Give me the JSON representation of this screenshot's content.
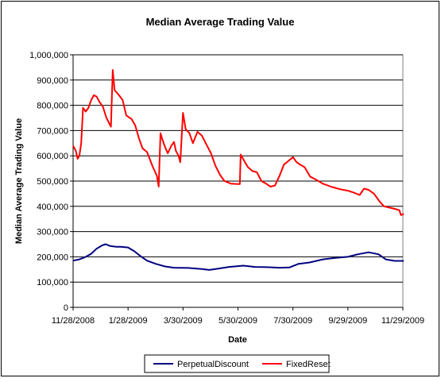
{
  "chart_data": {
    "type": "line",
    "title": "Median Average Trading Value",
    "xlabel": "Date",
    "ylabel": "Median Average Trading Value",
    "ylim": [
      0,
      1000000
    ],
    "y_ticks": [
      0,
      100000,
      200000,
      300000,
      400000,
      500000,
      600000,
      700000,
      800000,
      900000,
      1000000
    ],
    "y_tick_labels": [
      "0",
      "100,000",
      "200,000",
      "300,000",
      "400,000",
      "500,000",
      "600,000",
      "700,000",
      "800,000",
      "900,000",
      "1,000,000"
    ],
    "x_ticks": [
      "2008-11-28",
      "2009-01-28",
      "2009-03-30",
      "2009-05-30",
      "2009-07-30",
      "2009-09-29",
      "2009-11-29"
    ],
    "x_tick_labels": [
      "11/28/2008",
      "1/28/2009",
      "3/30/2009",
      "5/30/2009",
      "7/30/2009",
      "9/29/2009",
      "11/29/2009"
    ],
    "grid": "horizontal",
    "legend_position": "bottom",
    "series": [
      {
        "name": "PerpetualDiscount",
        "color": "#000080",
        "points": [
          [
            "2008-11-28",
            185000
          ],
          [
            "2008-12-05",
            190000
          ],
          [
            "2008-12-12",
            200000
          ],
          [
            "2008-12-18",
            212000
          ],
          [
            "2008-12-24",
            232000
          ],
          [
            "2008-12-30",
            245000
          ],
          [
            "2009-01-03",
            250000
          ],
          [
            "2009-01-08",
            243000
          ],
          [
            "2009-01-15",
            240000
          ],
          [
            "2009-01-20",
            240000
          ],
          [
            "2009-01-28",
            237000
          ],
          [
            "2009-02-04",
            222000
          ],
          [
            "2009-02-10",
            205000
          ],
          [
            "2009-02-18",
            185000
          ],
          [
            "2009-02-28",
            172000
          ],
          [
            "2009-03-10",
            162000
          ],
          [
            "2009-03-20",
            157000
          ],
          [
            "2009-04-05",
            156000
          ],
          [
            "2009-04-20",
            152000
          ],
          [
            "2009-04-28",
            148000
          ],
          [
            "2009-05-08",
            153000
          ],
          [
            "2009-05-20",
            160000
          ],
          [
            "2009-06-05",
            165000
          ],
          [
            "2009-06-18",
            160000
          ],
          [
            "2009-07-01",
            159000
          ],
          [
            "2009-07-15",
            157000
          ],
          [
            "2009-07-26",
            158000
          ],
          [
            "2009-08-05",
            172000
          ],
          [
            "2009-08-18",
            178000
          ],
          [
            "2009-09-01",
            190000
          ],
          [
            "2009-09-15",
            196000
          ],
          [
            "2009-09-29",
            200000
          ],
          [
            "2009-10-10",
            210000
          ],
          [
            "2009-10-22",
            218000
          ],
          [
            "2009-11-02",
            210000
          ],
          [
            "2009-11-10",
            190000
          ],
          [
            "2009-11-20",
            184000
          ],
          [
            "2009-11-30",
            184000
          ]
        ]
      },
      {
        "name": "FixedReset",
        "color": "#ff0000",
        "points": [
          [
            "2008-11-28",
            640000
          ],
          [
            "2008-12-01",
            620000
          ],
          [
            "2008-12-03",
            588000
          ],
          [
            "2008-12-05",
            600000
          ],
          [
            "2008-12-07",
            650000
          ],
          [
            "2008-12-09",
            790000
          ],
          [
            "2008-12-12",
            775000
          ],
          [
            "2008-12-15",
            790000
          ],
          [
            "2008-12-18",
            820000
          ],
          [
            "2008-12-21",
            840000
          ],
          [
            "2008-12-24",
            835000
          ],
          [
            "2008-12-27",
            815000
          ],
          [
            "2008-12-31",
            795000
          ],
          [
            "2009-01-04",
            750000
          ],
          [
            "2009-01-09",
            715000
          ],
          [
            "2009-01-11",
            940000
          ],
          [
            "2009-01-13",
            860000
          ],
          [
            "2009-01-18",
            840000
          ],
          [
            "2009-01-22",
            820000
          ],
          [
            "2009-01-26",
            760000
          ],
          [
            "2009-02-01",
            745000
          ],
          [
            "2009-02-05",
            720000
          ],
          [
            "2009-02-09",
            670000
          ],
          [
            "2009-02-13",
            630000
          ],
          [
            "2009-02-18",
            615000
          ],
          [
            "2009-02-24",
            560000
          ],
          [
            "2009-03-01",
            520000
          ],
          [
            "2009-03-03",
            478000
          ],
          [
            "2009-03-05",
            690000
          ],
          [
            "2009-03-07",
            665000
          ],
          [
            "2009-03-10",
            635000
          ],
          [
            "2009-03-13",
            610000
          ],
          [
            "2009-03-17",
            640000
          ],
          [
            "2009-03-20",
            655000
          ],
          [
            "2009-03-22",
            620000
          ],
          [
            "2009-03-25",
            600000
          ],
          [
            "2009-03-27",
            575000
          ],
          [
            "2009-03-30",
            770000
          ],
          [
            "2009-04-02",
            705000
          ],
          [
            "2009-04-06",
            690000
          ],
          [
            "2009-04-10",
            650000
          ],
          [
            "2009-04-15",
            695000
          ],
          [
            "2009-04-20",
            680000
          ],
          [
            "2009-04-25",
            645000
          ],
          [
            "2009-04-30",
            610000
          ],
          [
            "2009-05-05",
            560000
          ],
          [
            "2009-05-10",
            525000
          ],
          [
            "2009-05-15",
            500000
          ],
          [
            "2009-05-22",
            490000
          ],
          [
            "2009-05-30",
            488000
          ],
          [
            "2009-06-01",
            488000
          ],
          [
            "2009-06-02",
            605000
          ],
          [
            "2009-06-06",
            580000
          ],
          [
            "2009-06-10",
            555000
          ],
          [
            "2009-06-15",
            540000
          ],
          [
            "2009-06-20",
            535000
          ],
          [
            "2009-06-25",
            500000
          ],
          [
            "2009-07-01",
            488000
          ],
          [
            "2009-07-05",
            478000
          ],
          [
            "2009-07-10",
            482000
          ],
          [
            "2009-07-15",
            520000
          ],
          [
            "2009-07-20",
            565000
          ],
          [
            "2009-07-25",
            580000
          ],
          [
            "2009-07-30",
            595000
          ],
          [
            "2009-08-03",
            575000
          ],
          [
            "2009-08-07",
            565000
          ],
          [
            "2009-08-12",
            555000
          ],
          [
            "2009-08-18",
            518000
          ],
          [
            "2009-08-25",
            505000
          ],
          [
            "2009-09-01",
            490000
          ],
          [
            "2009-09-10",
            478000
          ],
          [
            "2009-09-20",
            468000
          ],
          [
            "2009-09-29",
            462000
          ],
          [
            "2009-10-05",
            455000
          ],
          [
            "2009-10-12",
            445000
          ],
          [
            "2009-10-17",
            470000
          ],
          [
            "2009-10-22",
            465000
          ],
          [
            "2009-10-28",
            450000
          ],
          [
            "2009-11-03",
            420000
          ],
          [
            "2009-11-08",
            400000
          ],
          [
            "2009-11-14",
            395000
          ],
          [
            "2009-11-20",
            390000
          ],
          [
            "2009-11-25",
            385000
          ],
          [
            "2009-11-27",
            365000
          ],
          [
            "2009-11-30",
            370000
          ]
        ]
      }
    ]
  }
}
